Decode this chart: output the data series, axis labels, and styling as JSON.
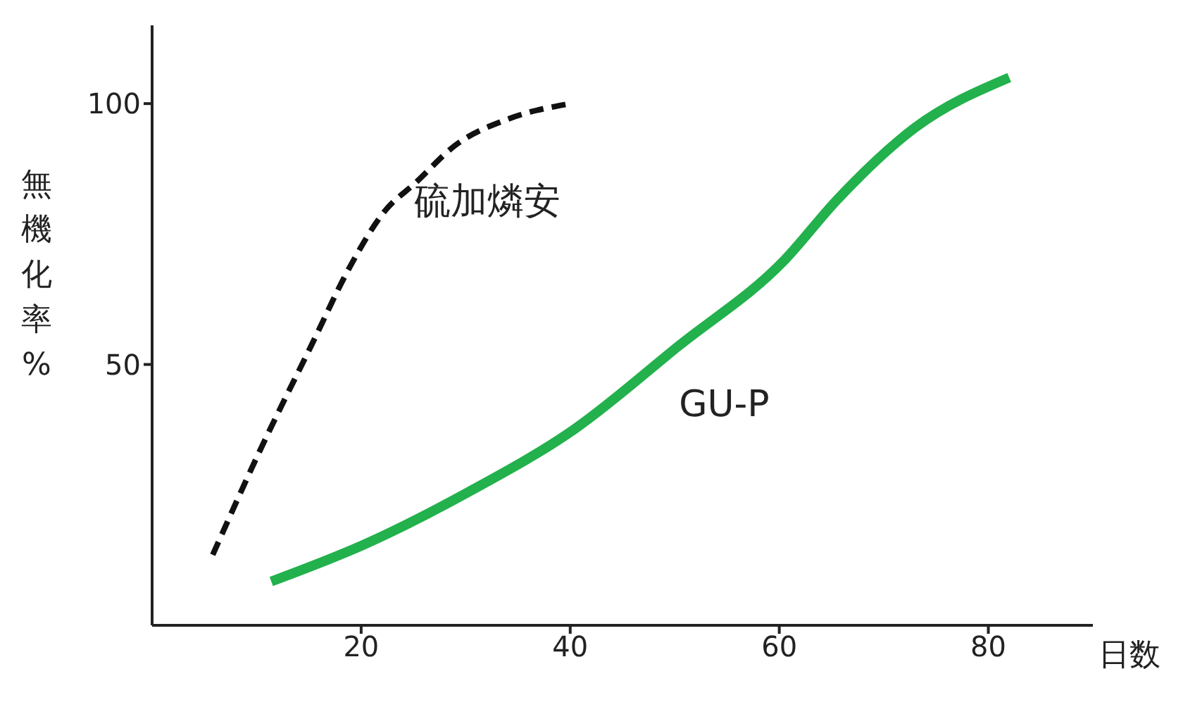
{
  "chart_data": {
    "type": "line",
    "xlabel": "日数",
    "ylabel": "無機化率%",
    "xlim": [
      0,
      90
    ],
    "ylim": [
      0,
      115
    ],
    "xticks": [
      20,
      40,
      60,
      80
    ],
    "yticks": [
      50,
      100
    ],
    "marker": "none",
    "series": [
      {
        "name": "硫加燐安",
        "color": "#111111",
        "line_style": "dashed",
        "x": [
          5.8,
          10.2,
          15.2,
          19,
          22.1,
          25.3,
          29,
          34,
          40
        ],
        "values": [
          13.5,
          33,
          53.5,
          69,
          79,
          85,
          92,
          97,
          100
        ]
      },
      {
        "name": "GU-P",
        "color": "#22b14c",
        "line_style": "solid",
        "x": [
          11.4,
          20.3,
          30.3,
          40.4,
          50.4,
          60.5,
          65.5,
          73,
          82
        ],
        "values": [
          8.4,
          15.5,
          25.6,
          37.6,
          53.6,
          70,
          81.5,
          95.4,
          105
        ]
      }
    ]
  }
}
